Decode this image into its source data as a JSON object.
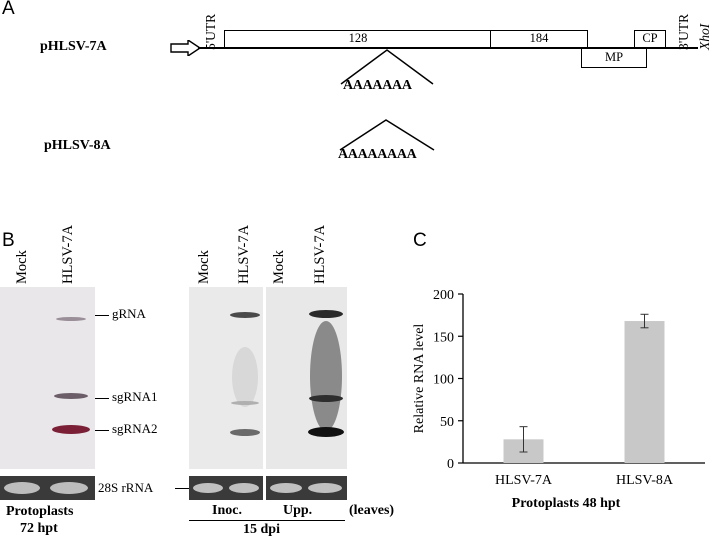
{
  "panels": {
    "a": "A",
    "b": "B",
    "c": "C"
  },
  "construct": {
    "plasmid_7a": "pHLSV-7A",
    "plasmid_8a": "pHLSV-8A",
    "utr5": "5'UTR",
    "utr3": "3'UTR",
    "xhoi": "XhoI",
    "orf128": "128",
    "orf184": "184",
    "mp": "MP",
    "cp": "CP",
    "tract_7a": "AAAAAAA",
    "tract_8a": "AAAAAAAA"
  },
  "blot": {
    "lanes_left": [
      "Mock",
      "HLSV-7A"
    ],
    "lanes_inoc": [
      "Mock",
      "HLSV-7A"
    ],
    "lanes_upp": [
      "Mock",
      "HLSV-7A"
    ],
    "band_gRNA": "gRNA",
    "band_sg1": "sgRNA1",
    "band_sg2": "sgRNA2",
    "rrna": "28S rRNA",
    "protoplasts": "Protoplasts",
    "hpt72": "72 hpt",
    "inoc": "Inoc.",
    "upp": "Upp.",
    "leaves": "(leaves)",
    "dpi15": "15 dpi"
  },
  "chart_data": {
    "type": "bar",
    "categories": [
      "HLSV-7A",
      "HLSV-8A"
    ],
    "values": [
      28,
      168
    ],
    "errors": [
      15,
      8
    ],
    "ylabel": "Relative RNA level",
    "xlabel": "Protoplasts 48 hpt",
    "ylim": [
      0,
      200
    ],
    "yticks": [
      0,
      50,
      100,
      150,
      200
    ],
    "bar_color": "#c8c8c8"
  }
}
